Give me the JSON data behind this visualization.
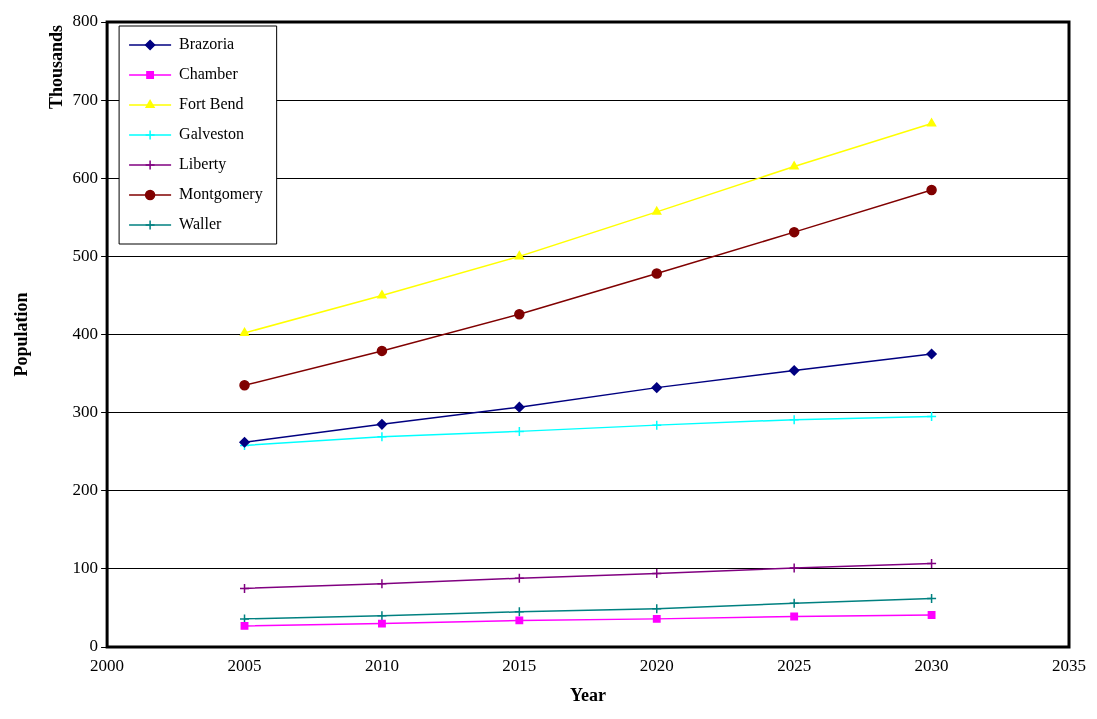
{
  "chart_data": {
    "type": "line",
    "xlabel": "Year",
    "ylabel": "Population",
    "annotations": [
      "Thousands"
    ],
    "x": [
      2005,
      2010,
      2015,
      2020,
      2025,
      2030
    ],
    "xlim": [
      2000,
      2035
    ],
    "xticks": [
      2000,
      2005,
      2010,
      2015,
      2020,
      2025,
      2030,
      2035
    ],
    "ylim": [
      0,
      800
    ],
    "yticks": [
      0,
      100,
      200,
      300,
      400,
      500,
      600,
      700,
      800
    ],
    "grid": "y",
    "legend": "top left",
    "series": [
      {
        "name": "Brazoria",
        "color": "#000080",
        "marker": "diamond",
        "values": [
          262,
          285,
          307,
          332,
          354,
          375
        ]
      },
      {
        "name": "Chamber",
        "color": "#ff00ff",
        "marker": "square",
        "values": [
          27,
          30,
          34,
          36,
          39,
          41
        ]
      },
      {
        "name": "Fort Bend",
        "color": "#ffff00",
        "marker": "triangle",
        "values": [
          402,
          450,
          500,
          557,
          615,
          670
        ]
      },
      {
        "name": "Galveston",
        "color": "#00ffff",
        "marker": "cross",
        "values": [
          258,
          269,
          276,
          284,
          291,
          295
        ]
      },
      {
        "name": "Liberty",
        "color": "#800080",
        "marker": "cross",
        "values": [
          75,
          81,
          88,
          94,
          101,
          107
        ]
      },
      {
        "name": "Montgomery",
        "color": "#800000",
        "marker": "circle",
        "values": [
          335,
          379,
          426,
          478,
          531,
          585
        ]
      },
      {
        "name": "Waller",
        "color": "#008080",
        "marker": "cross",
        "values": [
          36,
          40,
          45,
          49,
          56,
          62
        ]
      }
    ]
  }
}
